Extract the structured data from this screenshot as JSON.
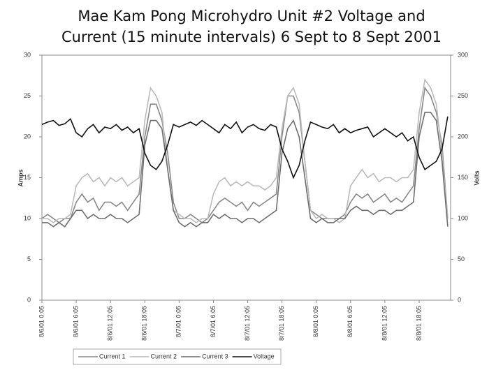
{
  "chart_data": {
    "type": "line",
    "title": "Mae Kam Pong Microhydro Unit #2 Voltage and Current (15 minute intervals) 6 Sept to 8 Sept 2001",
    "y_label": "Amps",
    "y2_label": "Volts",
    "categories": [
      "8/6/01 0:05",
      null,
      null,
      null,
      null,
      null,
      "8/6/01 6:05",
      null,
      null,
      null,
      null,
      null,
      "8/6/01 12:05",
      null,
      null,
      null,
      null,
      null,
      "8/6/01 18:05",
      null,
      null,
      null,
      null,
      null,
      "8/7/01 0:05",
      null,
      null,
      null,
      null,
      null,
      "8/7/01 6:05",
      null,
      null,
      null,
      null,
      null,
      "8/7/01 12:05",
      null,
      null,
      null,
      null,
      null,
      "8/7/01 18:05",
      null,
      null,
      null,
      null,
      null,
      "8/8/01 0:05",
      null,
      null,
      null,
      null,
      null,
      "8/8/01 6:05",
      null,
      null,
      null,
      null,
      null,
      "8/8/01 12:05",
      null,
      null,
      null,
      null,
      null,
      "8/8/01 18:05",
      null,
      null,
      null,
      null,
      null
    ],
    "ylim": [
      0,
      30
    ],
    "yticks": [
      0,
      5,
      10,
      15,
      20,
      25,
      30
    ],
    "y2lim": [
      0,
      300
    ],
    "y2ticks": [
      0,
      50,
      100,
      150,
      200,
      250,
      300
    ],
    "legend": "bottom",
    "series": [
      {
        "name": "Current 1",
        "color": "#888888",
        "values": [
          10,
          10.5,
          10,
          9.5,
          10,
          10,
          12,
          13,
          12,
          12.5,
          11,
          12,
          12,
          11.5,
          12,
          11,
          12,
          13,
          20,
          24,
          24,
          22,
          18,
          12,
          10,
          10,
          10.5,
          10,
          9.5,
          10,
          11,
          12,
          12.5,
          12,
          11.5,
          12,
          11,
          12,
          11.5,
          12,
          12.5,
          13,
          20,
          25,
          25,
          23,
          17,
          11,
          10.5,
          10,
          10,
          10,
          10,
          10.5,
          12,
          13,
          12.5,
          13,
          12,
          12.5,
          13,
          12,
          12.5,
          12,
          13,
          14,
          21,
          26,
          25,
          23,
          19,
          10
        ]
      },
      {
        "name": "Current 2",
        "color": "#bbbbbb",
        "values": [
          10,
          10,
          9.5,
          10,
          10,
          10.5,
          14,
          15,
          15.5,
          14.5,
          15,
          14,
          15,
          14.5,
          15,
          14,
          14.5,
          15,
          22,
          26,
          25,
          23,
          16,
          11,
          10.5,
          10,
          10,
          9.5,
          10,
          10,
          13,
          14.5,
          15,
          14,
          14.5,
          14,
          14.5,
          14,
          14,
          13.5,
          14,
          15,
          21,
          25,
          26,
          24,
          17,
          11,
          10,
          10.5,
          10,
          10,
          9.5,
          10,
          14,
          15,
          16,
          15,
          15.5,
          14.5,
          15,
          15,
          14.5,
          15,
          15,
          16,
          23,
          27,
          26,
          24,
          18,
          10
        ]
      },
      {
        "name": "Current 3",
        "color": "#6e6e6e",
        "values": [
          9.5,
          9.5,
          9,
          9.5,
          9,
          10,
          11,
          11,
          10,
          10.5,
          10,
          10,
          10.5,
          10,
          10,
          9.5,
          10,
          10.5,
          19,
          22,
          22,
          21,
          16,
          11,
          9.5,
          9,
          9.5,
          9,
          9.5,
          9.5,
          10.5,
          10,
          10.5,
          10,
          10,
          9.5,
          10,
          10,
          9.5,
          10,
          10.5,
          11,
          18,
          21,
          22,
          20,
          15,
          10,
          9.5,
          10,
          9.5,
          9.5,
          10,
          10,
          11,
          11.5,
          11,
          11,
          10.5,
          11,
          11,
          10.5,
          11,
          11,
          11.5,
          12,
          20,
          23,
          23,
          22,
          17,
          9
        ]
      },
      {
        "name": "Voltage",
        "color": "#111111",
        "axis": "y2",
        "values": [
          215,
          218,
          220,
          214,
          216,
          222,
          205,
          200,
          210,
          215,
          205,
          212,
          210,
          215,
          208,
          212,
          205,
          210,
          180,
          165,
          160,
          170,
          190,
          215,
          212,
          215,
          218,
          214,
          220,
          215,
          210,
          205,
          215,
          210,
          218,
          205,
          212,
          215,
          210,
          208,
          215,
          212,
          185,
          170,
          150,
          165,
          195,
          218,
          215,
          212,
          210,
          215,
          205,
          210,
          205,
          208,
          210,
          212,
          200,
          205,
          210,
          205,
          200,
          205,
          195,
          200,
          175,
          160,
          165,
          170,
          185,
          225
        ]
      }
    ]
  }
}
